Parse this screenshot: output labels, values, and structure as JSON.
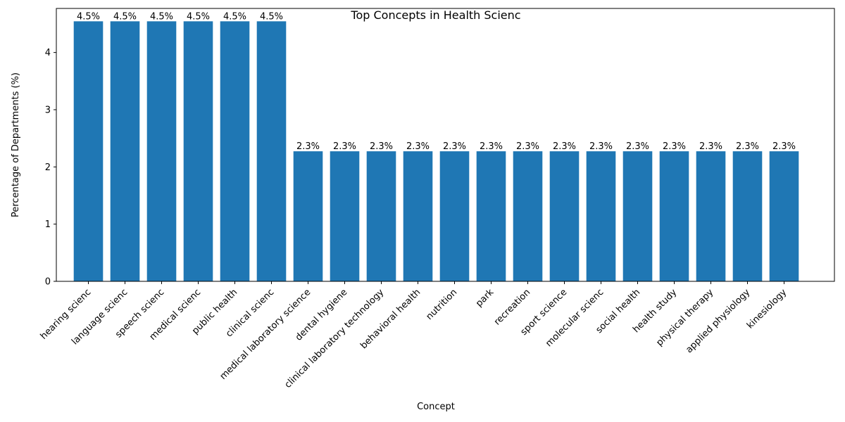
{
  "chart_data": {
    "type": "bar",
    "title": "Top Concepts in Health Scienc",
    "xlabel": "Concept",
    "ylabel": "Percentage of Departments (%)",
    "categories": [
      "hearing scienc",
      "language scienc",
      "speech scienc",
      "medical scienc",
      "public health",
      "clinical scienc",
      "medical laboratory science",
      "dental hygiene",
      "clinical laboratory technology",
      "behavioral health",
      "nutrition",
      "park",
      "recreation",
      "sport science",
      "molecular scienc",
      "social health",
      "health study",
      "physical therapy",
      "applied physiology",
      "kinesiology"
    ],
    "values": [
      4.545,
      4.545,
      4.545,
      4.545,
      4.545,
      4.545,
      2.273,
      2.273,
      2.273,
      2.273,
      2.273,
      2.273,
      2.273,
      2.273,
      2.273,
      2.273,
      2.273,
      2.273,
      2.273,
      2.273
    ],
    "data_labels": [
      "4.5%",
      "4.5%",
      "4.5%",
      "4.5%",
      "4.5%",
      "4.5%",
      "2.3%",
      "2.3%",
      "2.3%",
      "2.3%",
      "2.3%",
      "2.3%",
      "2.3%",
      "2.3%",
      "2.3%",
      "2.3%",
      "2.3%",
      "2.3%",
      "2.3%",
      "2.3%"
    ],
    "yticks": [
      0,
      1,
      2,
      3,
      4
    ],
    "ylim": [
      0,
      4.77
    ],
    "grid": false,
    "bar_color": "#1f77b4"
  }
}
